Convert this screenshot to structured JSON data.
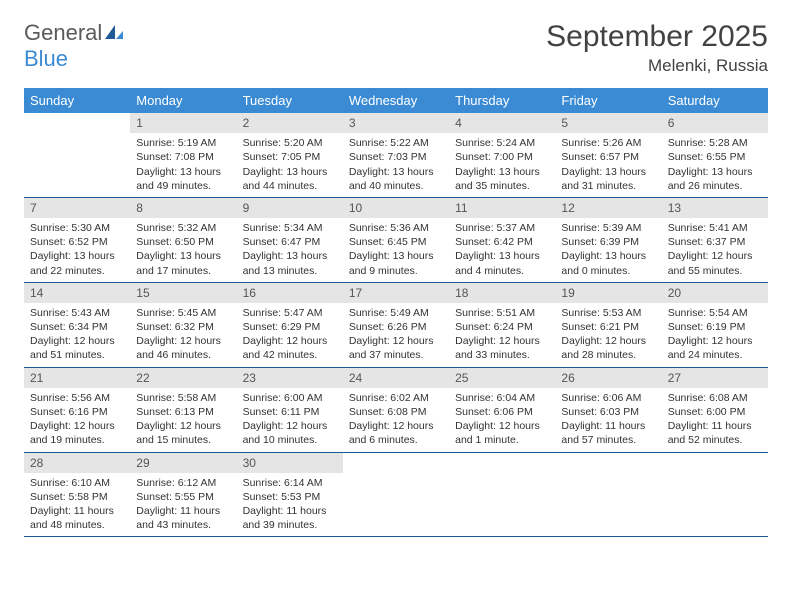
{
  "logo": {
    "part1": "General",
    "part2": "Blue"
  },
  "title": "September 2025",
  "location": "Melenki, Russia",
  "weekdays": [
    "Sunday",
    "Monday",
    "Tuesday",
    "Wednesday",
    "Thursday",
    "Friday",
    "Saturday"
  ],
  "colors": {
    "header_bg": "#3b8bd4",
    "header_text": "#ffffff",
    "daynum_bg": "#e5e5e5",
    "daynum_text": "#555555",
    "border": "#1e5a96",
    "title_text": "#424242",
    "logo_gray": "#5a5a5a",
    "logo_blue": "#3b8bd4"
  },
  "weeks": [
    [
      {
        "day": "",
        "sunrise": "",
        "sunset": "",
        "daylight": ""
      },
      {
        "day": "1",
        "sunrise": "Sunrise: 5:19 AM",
        "sunset": "Sunset: 7:08 PM",
        "daylight": "Daylight: 13 hours and 49 minutes."
      },
      {
        "day": "2",
        "sunrise": "Sunrise: 5:20 AM",
        "sunset": "Sunset: 7:05 PM",
        "daylight": "Daylight: 13 hours and 44 minutes."
      },
      {
        "day": "3",
        "sunrise": "Sunrise: 5:22 AM",
        "sunset": "Sunset: 7:03 PM",
        "daylight": "Daylight: 13 hours and 40 minutes."
      },
      {
        "day": "4",
        "sunrise": "Sunrise: 5:24 AM",
        "sunset": "Sunset: 7:00 PM",
        "daylight": "Daylight: 13 hours and 35 minutes."
      },
      {
        "day": "5",
        "sunrise": "Sunrise: 5:26 AM",
        "sunset": "Sunset: 6:57 PM",
        "daylight": "Daylight: 13 hours and 31 minutes."
      },
      {
        "day": "6",
        "sunrise": "Sunrise: 5:28 AM",
        "sunset": "Sunset: 6:55 PM",
        "daylight": "Daylight: 13 hours and 26 minutes."
      }
    ],
    [
      {
        "day": "7",
        "sunrise": "Sunrise: 5:30 AM",
        "sunset": "Sunset: 6:52 PM",
        "daylight": "Daylight: 13 hours and 22 minutes."
      },
      {
        "day": "8",
        "sunrise": "Sunrise: 5:32 AM",
        "sunset": "Sunset: 6:50 PM",
        "daylight": "Daylight: 13 hours and 17 minutes."
      },
      {
        "day": "9",
        "sunrise": "Sunrise: 5:34 AM",
        "sunset": "Sunset: 6:47 PM",
        "daylight": "Daylight: 13 hours and 13 minutes."
      },
      {
        "day": "10",
        "sunrise": "Sunrise: 5:36 AM",
        "sunset": "Sunset: 6:45 PM",
        "daylight": "Daylight: 13 hours and 9 minutes."
      },
      {
        "day": "11",
        "sunrise": "Sunrise: 5:37 AM",
        "sunset": "Sunset: 6:42 PM",
        "daylight": "Daylight: 13 hours and 4 minutes."
      },
      {
        "day": "12",
        "sunrise": "Sunrise: 5:39 AM",
        "sunset": "Sunset: 6:39 PM",
        "daylight": "Daylight: 13 hours and 0 minutes."
      },
      {
        "day": "13",
        "sunrise": "Sunrise: 5:41 AM",
        "sunset": "Sunset: 6:37 PM",
        "daylight": "Daylight: 12 hours and 55 minutes."
      }
    ],
    [
      {
        "day": "14",
        "sunrise": "Sunrise: 5:43 AM",
        "sunset": "Sunset: 6:34 PM",
        "daylight": "Daylight: 12 hours and 51 minutes."
      },
      {
        "day": "15",
        "sunrise": "Sunrise: 5:45 AM",
        "sunset": "Sunset: 6:32 PM",
        "daylight": "Daylight: 12 hours and 46 minutes."
      },
      {
        "day": "16",
        "sunrise": "Sunrise: 5:47 AM",
        "sunset": "Sunset: 6:29 PM",
        "daylight": "Daylight: 12 hours and 42 minutes."
      },
      {
        "day": "17",
        "sunrise": "Sunrise: 5:49 AM",
        "sunset": "Sunset: 6:26 PM",
        "daylight": "Daylight: 12 hours and 37 minutes."
      },
      {
        "day": "18",
        "sunrise": "Sunrise: 5:51 AM",
        "sunset": "Sunset: 6:24 PM",
        "daylight": "Daylight: 12 hours and 33 minutes."
      },
      {
        "day": "19",
        "sunrise": "Sunrise: 5:53 AM",
        "sunset": "Sunset: 6:21 PM",
        "daylight": "Daylight: 12 hours and 28 minutes."
      },
      {
        "day": "20",
        "sunrise": "Sunrise: 5:54 AM",
        "sunset": "Sunset: 6:19 PM",
        "daylight": "Daylight: 12 hours and 24 minutes."
      }
    ],
    [
      {
        "day": "21",
        "sunrise": "Sunrise: 5:56 AM",
        "sunset": "Sunset: 6:16 PM",
        "daylight": "Daylight: 12 hours and 19 minutes."
      },
      {
        "day": "22",
        "sunrise": "Sunrise: 5:58 AM",
        "sunset": "Sunset: 6:13 PM",
        "daylight": "Daylight: 12 hours and 15 minutes."
      },
      {
        "day": "23",
        "sunrise": "Sunrise: 6:00 AM",
        "sunset": "Sunset: 6:11 PM",
        "daylight": "Daylight: 12 hours and 10 minutes."
      },
      {
        "day": "24",
        "sunrise": "Sunrise: 6:02 AM",
        "sunset": "Sunset: 6:08 PM",
        "daylight": "Daylight: 12 hours and 6 minutes."
      },
      {
        "day": "25",
        "sunrise": "Sunrise: 6:04 AM",
        "sunset": "Sunset: 6:06 PM",
        "daylight": "Daylight: 12 hours and 1 minute."
      },
      {
        "day": "26",
        "sunrise": "Sunrise: 6:06 AM",
        "sunset": "Sunset: 6:03 PM",
        "daylight": "Daylight: 11 hours and 57 minutes."
      },
      {
        "day": "27",
        "sunrise": "Sunrise: 6:08 AM",
        "sunset": "Sunset: 6:00 PM",
        "daylight": "Daylight: 11 hours and 52 minutes."
      }
    ],
    [
      {
        "day": "28",
        "sunrise": "Sunrise: 6:10 AM",
        "sunset": "Sunset: 5:58 PM",
        "daylight": "Daylight: 11 hours and 48 minutes."
      },
      {
        "day": "29",
        "sunrise": "Sunrise: 6:12 AM",
        "sunset": "Sunset: 5:55 PM",
        "daylight": "Daylight: 11 hours and 43 minutes."
      },
      {
        "day": "30",
        "sunrise": "Sunrise: 6:14 AM",
        "sunset": "Sunset: 5:53 PM",
        "daylight": "Daylight: 11 hours and 39 minutes."
      },
      {
        "day": "",
        "sunrise": "",
        "sunset": "",
        "daylight": ""
      },
      {
        "day": "",
        "sunrise": "",
        "sunset": "",
        "daylight": ""
      },
      {
        "day": "",
        "sunrise": "",
        "sunset": "",
        "daylight": ""
      },
      {
        "day": "",
        "sunrise": "",
        "sunset": "",
        "daylight": ""
      }
    ]
  ]
}
